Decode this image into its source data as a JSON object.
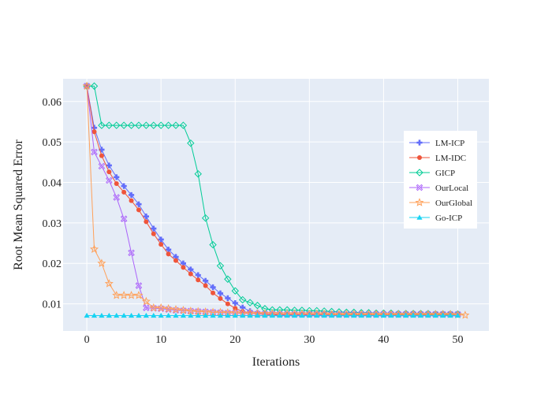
{
  "chart_data": {
    "type": "line",
    "xlabel": "Iterations",
    "ylabel": "Root Mean Squared Error",
    "xlim": [
      -3.2,
      54.2
    ],
    "ylim": [
      0.0033,
      0.0656
    ],
    "x_ticks": [
      0,
      10,
      20,
      30,
      40,
      50
    ],
    "y_ticks": [
      0.01,
      0.02,
      0.03,
      0.04,
      0.05,
      0.06
    ],
    "x_tick_labels": [
      "0",
      "10",
      "20",
      "30",
      "40",
      "50"
    ],
    "y_tick_labels": [
      "0.01",
      "0.02",
      "0.03",
      "0.04",
      "0.05",
      "0.06"
    ],
    "grid": true,
    "legend_position": "right",
    "series": [
      {
        "name": "LM-ICP",
        "color": "#636efa",
        "marker": "cross",
        "x": [
          0,
          1,
          2,
          3,
          4,
          5,
          6,
          7,
          8,
          9,
          10,
          11,
          12,
          13,
          14,
          15,
          16,
          17,
          18,
          19,
          20,
          21,
          22,
          23,
          24,
          25,
          26,
          27,
          28,
          29,
          30,
          31,
          32,
          33,
          34,
          35,
          36,
          37,
          38,
          39,
          40,
          41,
          42,
          43,
          44,
          45,
          46,
          47,
          48,
          49,
          50
        ],
        "y": [
          0.0638,
          0.0535,
          0.0481,
          0.0442,
          0.0413,
          0.0391,
          0.0369,
          0.0346,
          0.0316,
          0.0286,
          0.0259,
          0.0234,
          0.0216,
          0.02,
          0.0185,
          0.0171,
          0.0157,
          0.0141,
          0.0126,
          0.0114,
          0.0102,
          0.0091,
          0.0082,
          0.0078,
          0.0075,
          0.0074,
          0.0073,
          0.0073,
          0.0073,
          0.0073,
          0.0073,
          0.0073,
          0.0073,
          0.0073,
          0.0073,
          0.0073,
          0.0073,
          0.0073,
          0.0073,
          0.0073,
          0.0073,
          0.0073,
          0.0073,
          0.0073,
          0.0073,
          0.0073,
          0.0073,
          0.0073,
          0.0073,
          0.0073,
          0.0073
        ]
      },
      {
        "name": "LM-IDC",
        "color": "#ef553b",
        "marker": "circle",
        "x": [
          0,
          1,
          2,
          3,
          4,
          5,
          6,
          7,
          8,
          9,
          10,
          11,
          12,
          13,
          14,
          15,
          16,
          17,
          18,
          19,
          20,
          21,
          22,
          23,
          24,
          25,
          26,
          27,
          28,
          29,
          30,
          31,
          32,
          33,
          34,
          35,
          36,
          37,
          38,
          39,
          40,
          41,
          42,
          43,
          44,
          45,
          46,
          47,
          48,
          49,
          50
        ],
        "y": [
          0.0638,
          0.0525,
          0.0466,
          0.0426,
          0.0397,
          0.0376,
          0.0355,
          0.0332,
          0.0303,
          0.0273,
          0.0247,
          0.0223,
          0.0207,
          0.019,
          0.0174,
          0.0159,
          0.0145,
          0.0127,
          0.0113,
          0.01,
          0.0089,
          0.0081,
          0.0077,
          0.0075,
          0.0074,
          0.0073,
          0.0073,
          0.0073,
          0.0073,
          0.0073,
          0.0073,
          0.0073,
          0.0073,
          0.0073,
          0.0073,
          0.0073,
          0.0073,
          0.0073,
          0.0073,
          0.0073,
          0.0073,
          0.0073,
          0.0073,
          0.0073,
          0.0073,
          0.0073,
          0.0073,
          0.0073,
          0.0073,
          0.0073,
          0.0073
        ]
      },
      {
        "name": "GICP",
        "color": "#00cc96",
        "marker": "diamond",
        "x": [
          0,
          1,
          2,
          3,
          4,
          5,
          6,
          7,
          8,
          9,
          10,
          11,
          12,
          13,
          14,
          15,
          16,
          17,
          18,
          19,
          20,
          21,
          22,
          23,
          24,
          25,
          26,
          27,
          28,
          29,
          30,
          31,
          32,
          33,
          34,
          35,
          36,
          37,
          38,
          39,
          40,
          41,
          42,
          43,
          44,
          45,
          46,
          47,
          48,
          49,
          50
        ],
        "y": [
          0.0638,
          0.0638,
          0.0541,
          0.0541,
          0.0541,
          0.0541,
          0.0541,
          0.0541,
          0.0541,
          0.0541,
          0.0541,
          0.0541,
          0.0541,
          0.0541,
          0.0497,
          0.0421,
          0.0312,
          0.0246,
          0.0194,
          0.0161,
          0.0132,
          0.011,
          0.0103,
          0.0096,
          0.0088,
          0.0085,
          0.0085,
          0.0085,
          0.0084,
          0.0084,
          0.0083,
          0.0083,
          0.0082,
          0.0081,
          0.008,
          0.0079,
          0.0079,
          0.0078,
          0.0078,
          0.0077,
          0.0077,
          0.0077,
          0.0076,
          0.0076,
          0.0076,
          0.0076,
          0.0076,
          0.0075,
          0.0075,
          0.0075,
          0.0075
        ]
      },
      {
        "name": "OurLocal",
        "color": "#ab63fa",
        "marker": "x-open",
        "x": [
          0,
          1,
          2,
          3,
          4,
          5,
          6,
          7,
          8,
          9,
          10,
          11,
          12,
          13,
          14,
          15,
          16,
          17,
          18,
          19,
          20,
          21,
          22,
          23,
          24,
          25,
          26,
          27,
          28,
          29,
          30,
          31,
          32,
          33,
          34,
          35,
          36,
          37,
          38,
          39,
          40,
          41,
          42,
          43,
          44,
          45,
          46,
          47,
          48,
          49,
          50
        ],
        "y": [
          0.0638,
          0.0475,
          0.044,
          0.0405,
          0.0363,
          0.031,
          0.0226,
          0.0145,
          0.009,
          0.0089,
          0.0088,
          0.0086,
          0.0084,
          0.0083,
          0.0082,
          0.0081,
          0.008,
          0.0079,
          0.0078,
          0.0077,
          0.0077,
          0.0076,
          0.0076,
          0.0075,
          0.0075,
          0.0075,
          0.0074,
          0.0074,
          0.0074,
          0.0074,
          0.0074,
          0.0074,
          0.0074,
          0.0074,
          0.0074,
          0.0074,
          0.0074,
          0.0074,
          0.0074,
          0.0074,
          0.0074,
          0.0074,
          0.0074,
          0.0074,
          0.0074,
          0.0074,
          0.0074,
          0.0074,
          0.0074,
          0.0074,
          0.0074
        ]
      },
      {
        "name": "OurGlobal",
        "color": "#ffa15a",
        "marker": "star-open",
        "x": [
          0,
          1,
          2,
          3,
          4,
          5,
          6,
          7,
          8,
          9,
          10,
          11,
          12,
          13,
          14,
          15,
          16,
          17,
          18,
          19,
          20,
          21,
          22,
          23,
          24,
          25,
          26,
          27,
          28,
          29,
          30,
          31,
          32,
          33,
          34,
          35,
          36,
          37,
          38,
          39,
          40,
          41,
          42,
          43,
          44,
          45,
          46,
          47,
          48,
          49,
          50,
          51
        ],
        "y": [
          0.0638,
          0.0235,
          0.02,
          0.015,
          0.0121,
          0.0121,
          0.0121,
          0.0121,
          0.0106,
          0.009,
          0.009,
          0.0088,
          0.0086,
          0.0084,
          0.0082,
          0.0081,
          0.008,
          0.0079,
          0.0079,
          0.0078,
          0.0078,
          0.0077,
          0.0077,
          0.0076,
          0.0076,
          0.0076,
          0.0075,
          0.0075,
          0.0075,
          0.0075,
          0.0075,
          0.0075,
          0.0075,
          0.0074,
          0.0074,
          0.0074,
          0.0074,
          0.0074,
          0.0074,
          0.0074,
          0.0074,
          0.0074,
          0.0074,
          0.0074,
          0.0074,
          0.0074,
          0.0074,
          0.0074,
          0.0074,
          0.0074,
          0.0073,
          0.0072
        ]
      },
      {
        "name": "Go-ICP",
        "color": "#19d3f3",
        "marker": "triangle-up",
        "x": [
          0,
          1,
          2,
          3,
          4,
          5,
          6,
          7,
          8,
          9,
          10,
          11,
          12,
          13,
          14,
          15,
          16,
          17,
          18,
          19,
          20,
          21,
          22,
          23,
          24,
          25,
          26,
          27,
          28,
          29,
          30,
          31,
          32,
          33,
          34,
          35,
          36,
          37,
          38,
          39,
          40,
          41,
          42,
          43,
          44,
          45,
          46,
          47,
          48,
          49,
          50
        ],
        "y": [
          0.0071,
          0.0071,
          0.0071,
          0.0071,
          0.0071,
          0.0071,
          0.0071,
          0.0071,
          0.0071,
          0.0071,
          0.0071,
          0.0071,
          0.0071,
          0.0071,
          0.0071,
          0.0071,
          0.0071,
          0.0071,
          0.0071,
          0.0071,
          0.0071,
          0.0071,
          0.0071,
          0.0071,
          0.0071,
          0.0071,
          0.0071,
          0.0071,
          0.0071,
          0.0071,
          0.0071,
          0.0071,
          0.0071,
          0.0071,
          0.0071,
          0.0071,
          0.0071,
          0.0071,
          0.0071,
          0.0071,
          0.0071,
          0.0071,
          0.0071,
          0.0071,
          0.0071,
          0.0071,
          0.0071,
          0.0071,
          0.0071,
          0.0071,
          0.0071
        ]
      }
    ]
  },
  "style": {
    "plot_background": "#e5ecf6",
    "grid_color": "#ffffff",
    "legend_background": "#ffffff"
  }
}
